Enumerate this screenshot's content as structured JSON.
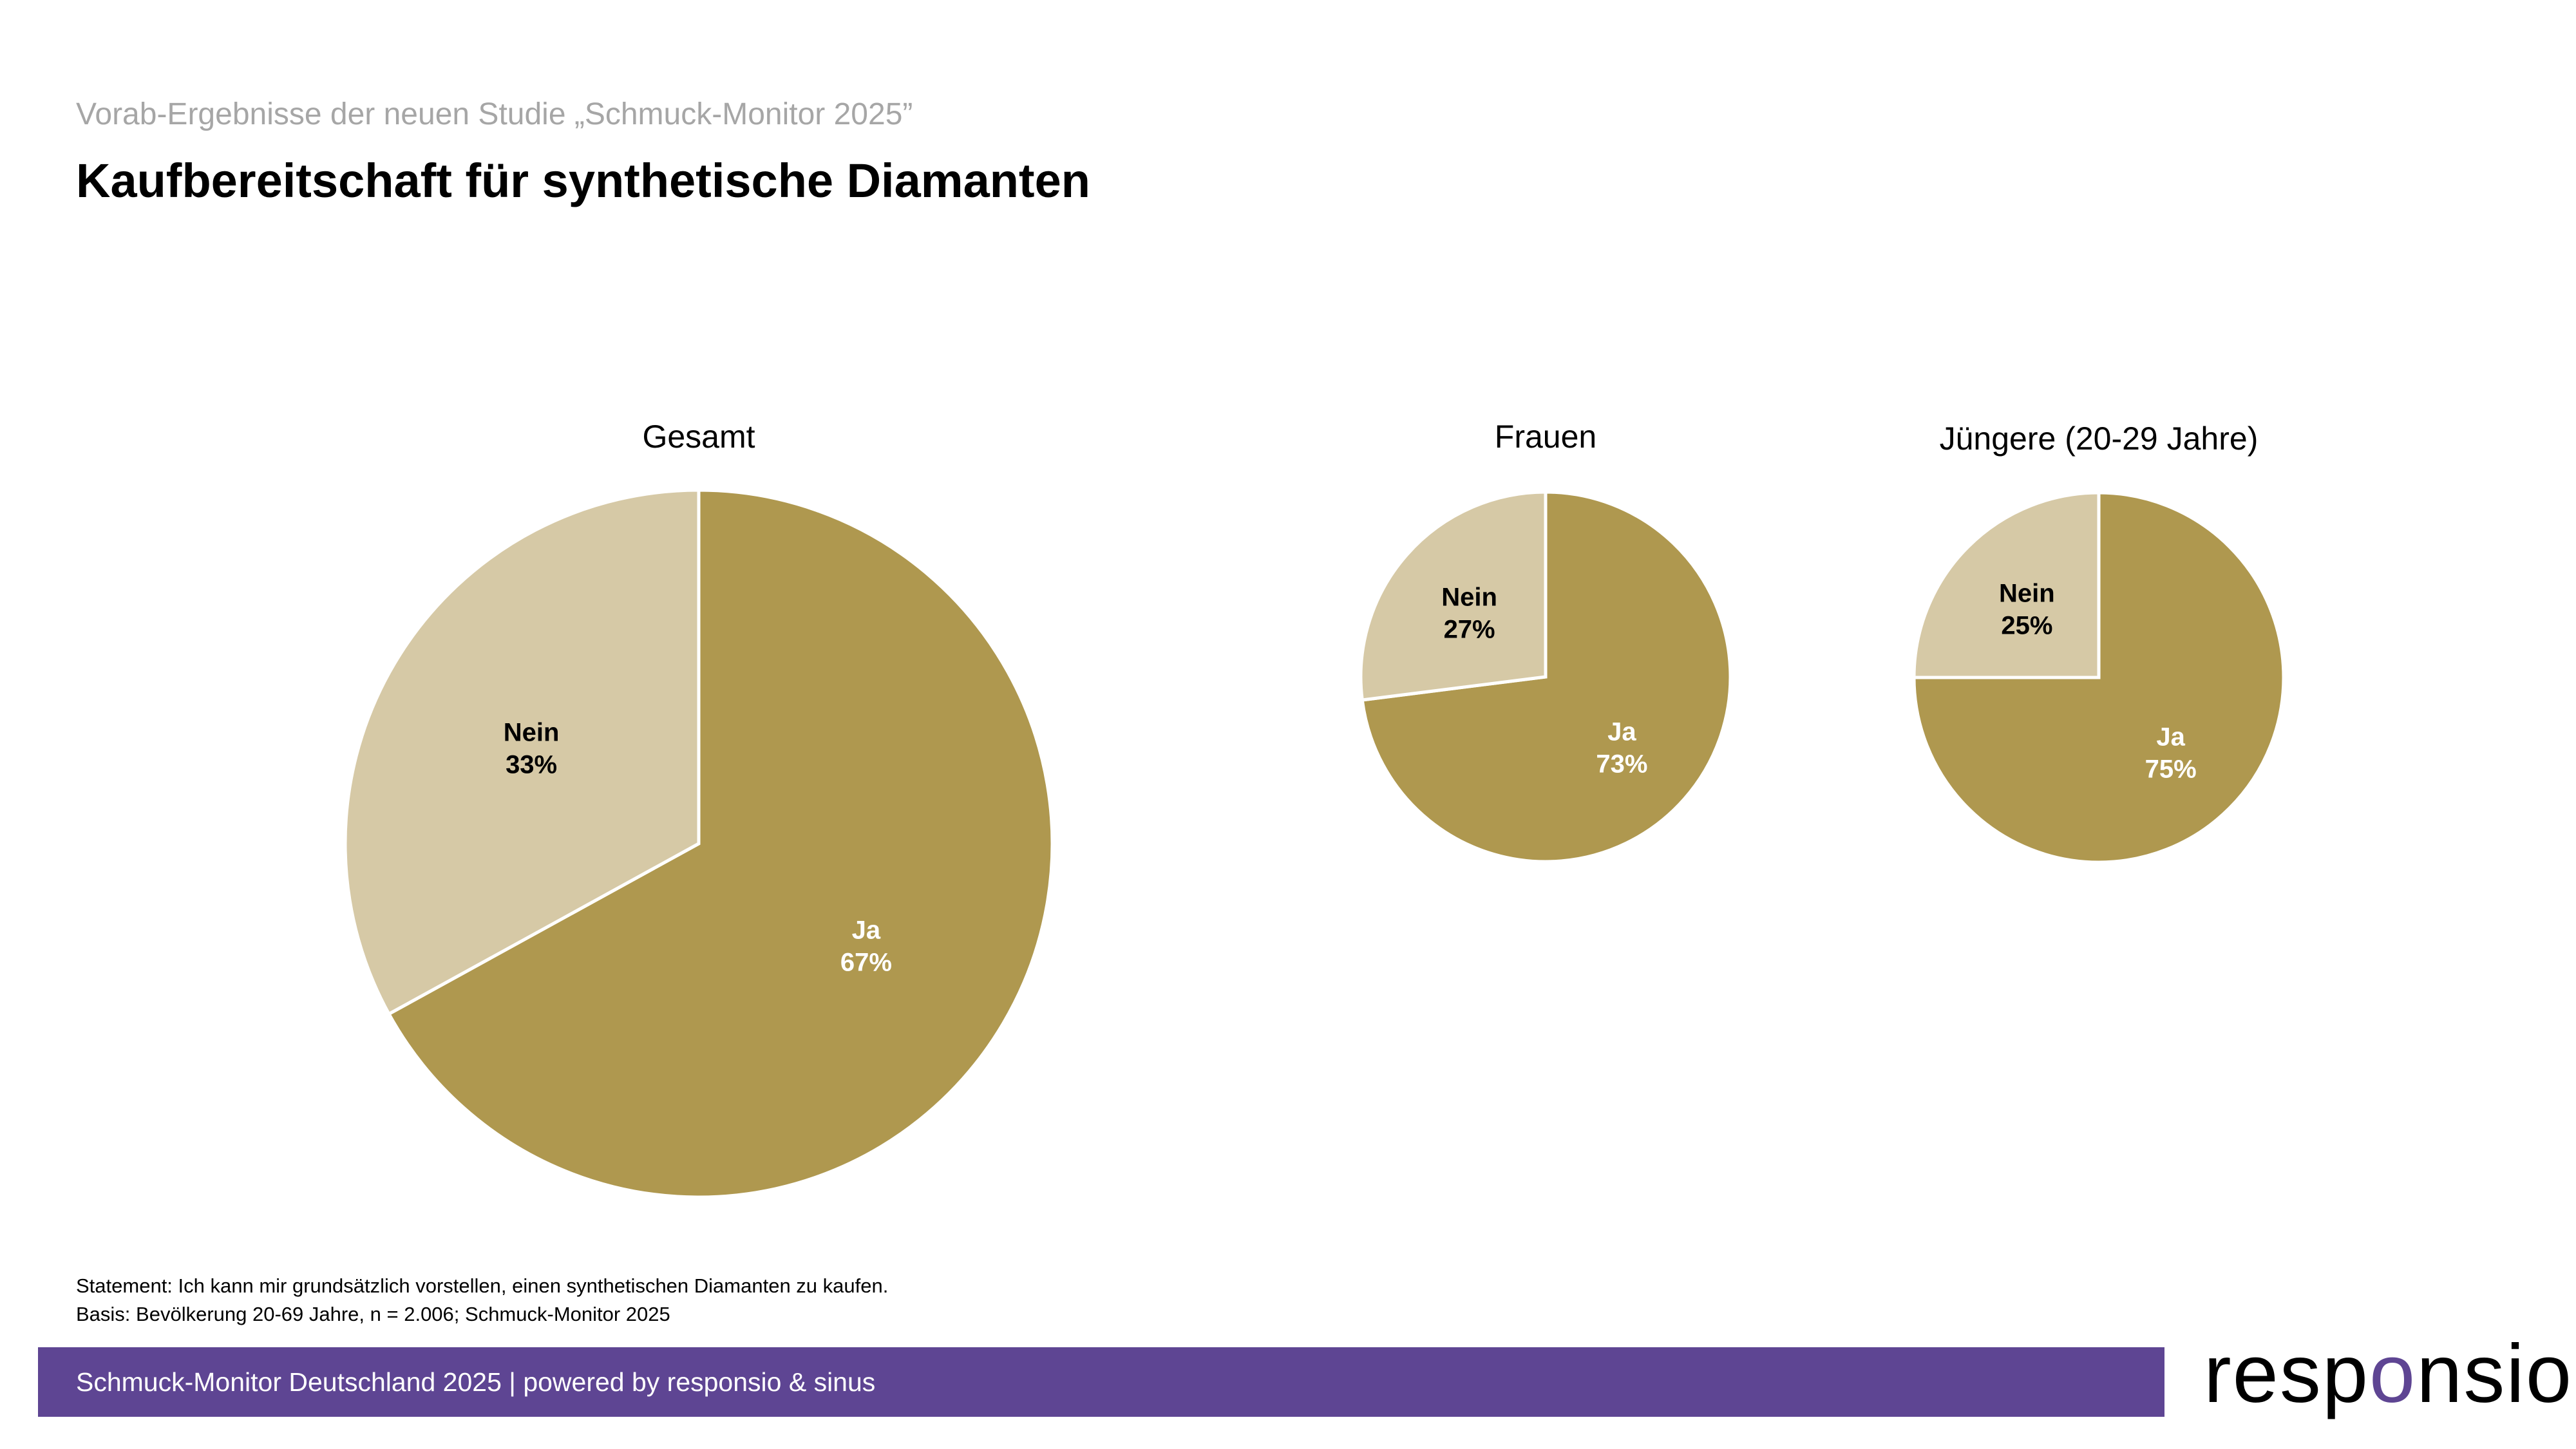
{
  "header": {
    "subtitle": "Vorab-Ergebnisse der neuen Studie „Schmuck-Monitor 2025”",
    "title": "Kaufbereitschaft für synthetische Diamanten"
  },
  "chart_data": [
    {
      "type": "pie",
      "title": "Gesamt",
      "slices": [
        {
          "label": "Ja",
          "value": 67,
          "text": "67%",
          "color": "#af984f"
        },
        {
          "label": "Nein",
          "value": 33,
          "text": "33%",
          "color": "#d6c9a6"
        }
      ]
    },
    {
      "type": "pie",
      "title": "Frauen",
      "slices": [
        {
          "label": "Ja",
          "value": 73,
          "text": "73%",
          "color": "#af984f"
        },
        {
          "label": "Nein",
          "value": 27,
          "text": "27%",
          "color": "#d6c9a6"
        }
      ]
    },
    {
      "type": "pie",
      "title": "Jüngere (20-29 Jahre)",
      "slices": [
        {
          "label": "Ja",
          "value": 75,
          "text": "75%",
          "color": "#af984f"
        },
        {
          "label": "Nein",
          "value": 25,
          "text": "25%",
          "color": "#d6c9a6"
        }
      ]
    }
  ],
  "notes": {
    "statement": "Statement: Ich kann mir grundsätzlich vorstellen, einen synthetischen Diamanten zu kaufen.",
    "basis": "Basis: Bevölkerung 20-69 Jahre, n = 2.006; Schmuck-Monitor 2025"
  },
  "footer": {
    "text": "Schmuck-Monitor Deutschland 2025 | powered by responsio & sinus",
    "logo": {
      "a": "resp",
      "b": "o",
      "c": "nsio"
    }
  }
}
